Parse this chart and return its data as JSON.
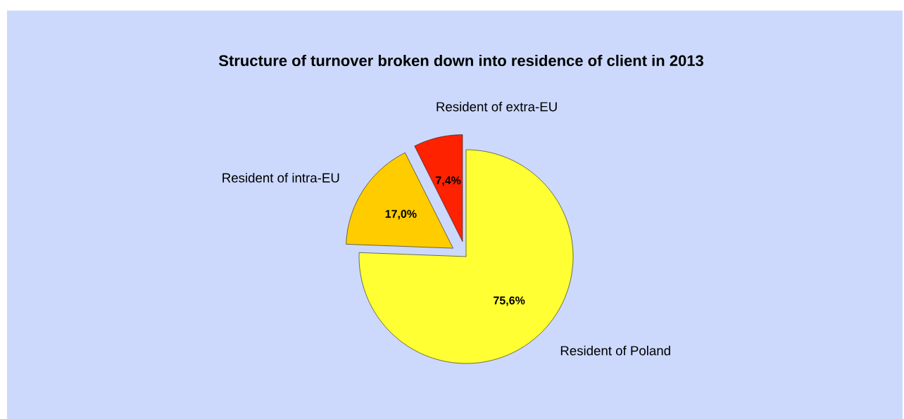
{
  "chart_data": {
    "type": "pie",
    "title": "Structure of turnover broken down into residence of client in 2013",
    "categories": [
      "Resident of Poland",
      "Resident of intra-EU",
      "Resident of extra-EU"
    ],
    "values": [
      75.6,
      17.0,
      7.4
    ],
    "colors": [
      "#ffff33",
      "#ffcc00",
      "#ff2200"
    ],
    "value_labels": [
      "75,6%",
      "17,0%",
      "7,4%"
    ]
  }
}
